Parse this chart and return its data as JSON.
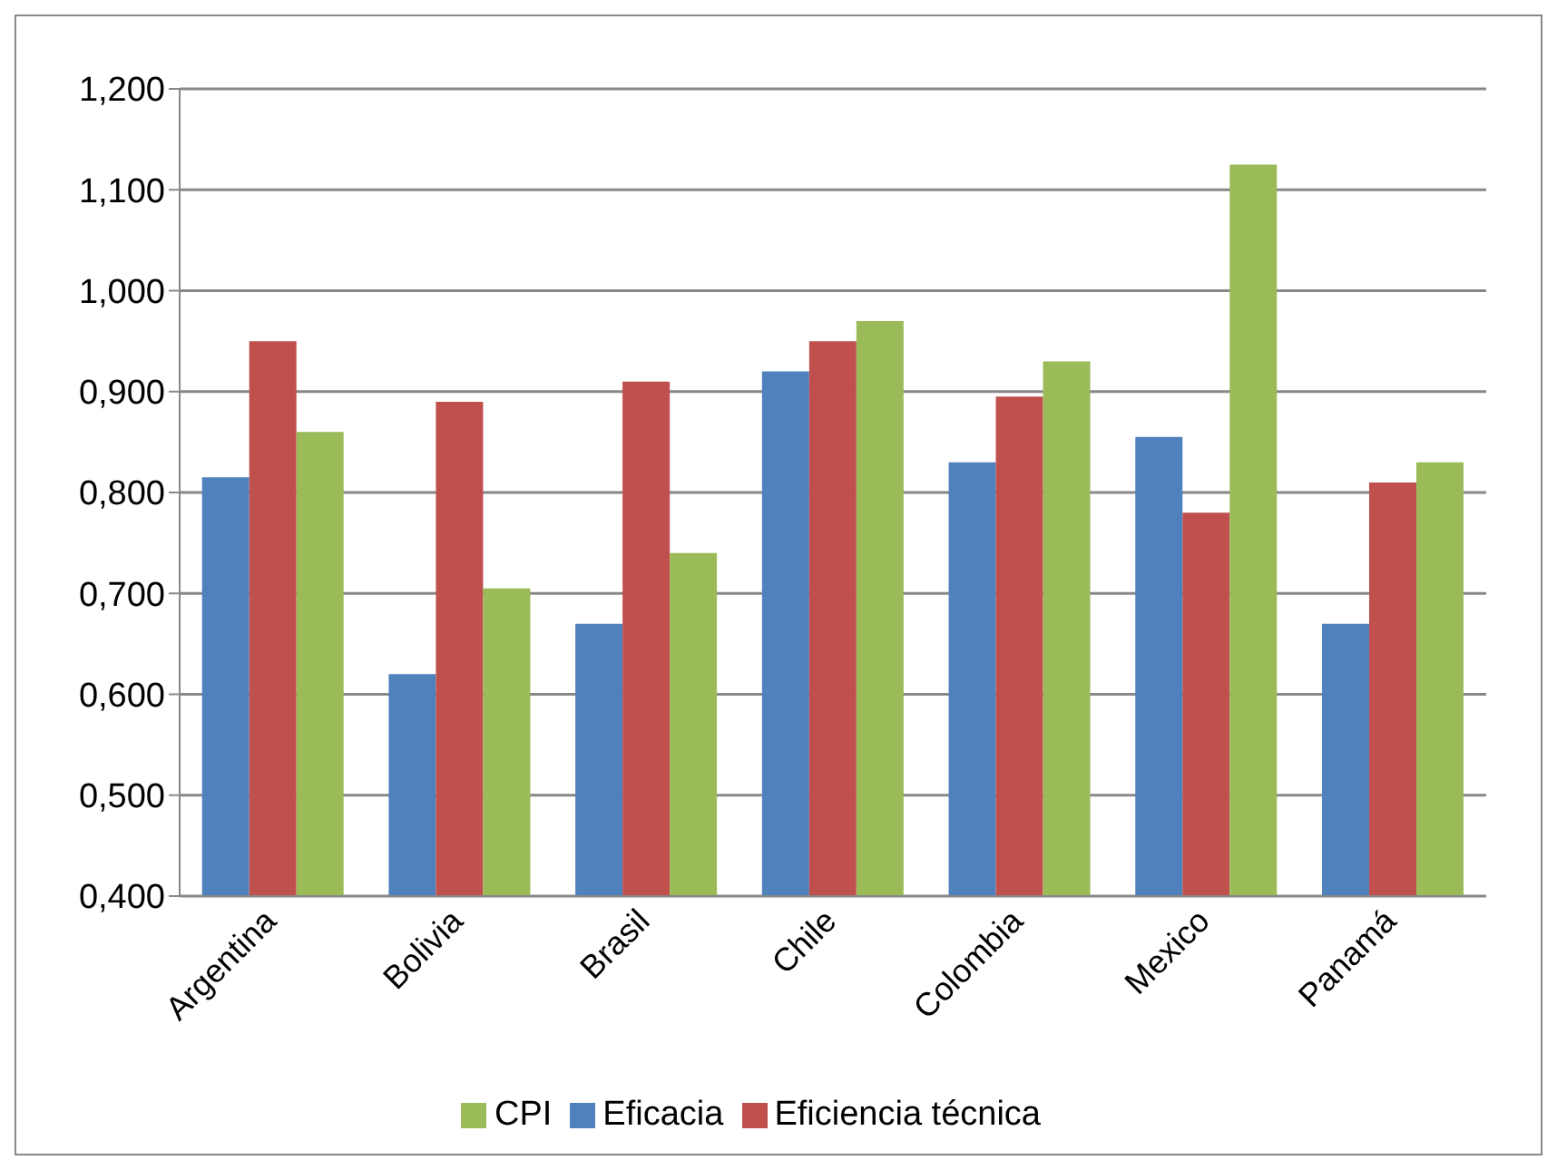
{
  "chart_data": {
    "type": "bar",
    "categories": [
      "Argentina",
      "Bolivia",
      "Brasil",
      "Chile",
      "Colombia",
      "Mexico",
      "Panamá"
    ],
    "series": [
      {
        "name": "Eficacia",
        "color": "#4f81bd",
        "values": [
          0.815,
          0.62,
          0.67,
          0.92,
          0.83,
          0.855,
          0.67
        ]
      },
      {
        "name": "Eficiencia técnica",
        "color": "#c0504d",
        "values": [
          0.95,
          0.89,
          0.91,
          0.95,
          0.895,
          0.78,
          0.81
        ]
      },
      {
        "name": "CPI",
        "color": "#9bbb59",
        "values": [
          0.86,
          0.705,
          0.74,
          0.97,
          0.93,
          1.125,
          0.83
        ]
      }
    ],
    "ylim": [
      0.4,
      1.2
    ],
    "yticks": [
      {
        "value": 0.4,
        "label": "0,400"
      },
      {
        "value": 0.5,
        "label": "0,500"
      },
      {
        "value": 0.6,
        "label": "0,600"
      },
      {
        "value": 0.7,
        "label": "0,700"
      },
      {
        "value": 0.8,
        "label": "0,800"
      },
      {
        "value": 0.9,
        "label": "0,900"
      },
      {
        "value": 1.0,
        "label": "1,000"
      },
      {
        "value": 1.1,
        "label": "1,100"
      },
      {
        "value": 1.2,
        "label": "1,200"
      }
    ],
    "grid": "y",
    "legend": "bottom"
  }
}
